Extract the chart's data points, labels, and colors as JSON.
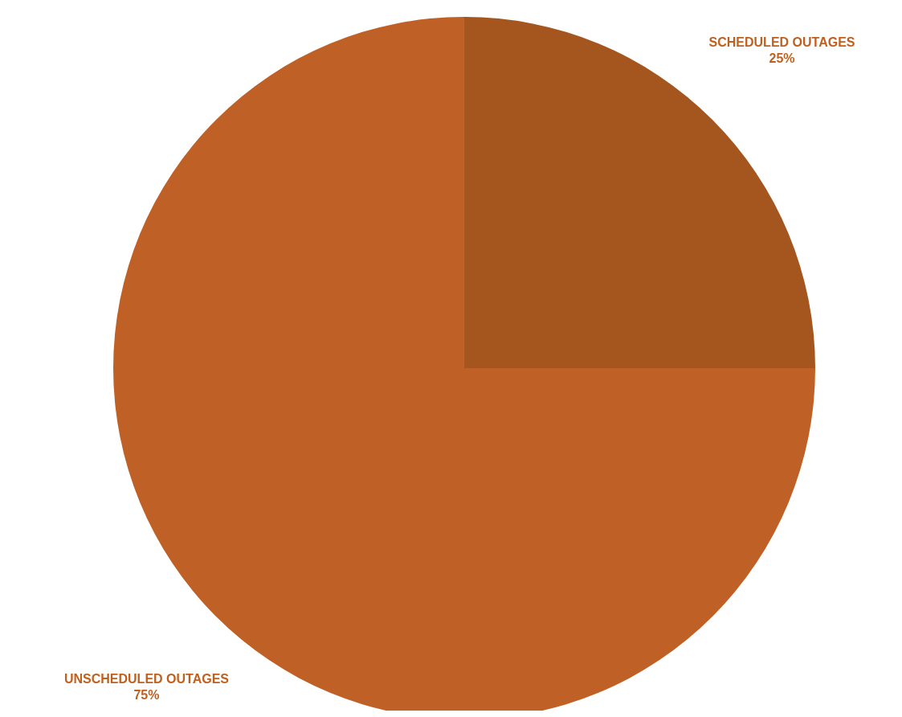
{
  "chart_data": {
    "type": "pie",
    "categories": [
      "SCHEDULED OUTAGES",
      "UNSCHEDULED OUTAGES"
    ],
    "values": [
      25,
      75
    ],
    "colors": [
      "#a5561f",
      "#bf6126"
    ],
    "value_labels": [
      "25%",
      "75%"
    ],
    "legend": false
  }
}
